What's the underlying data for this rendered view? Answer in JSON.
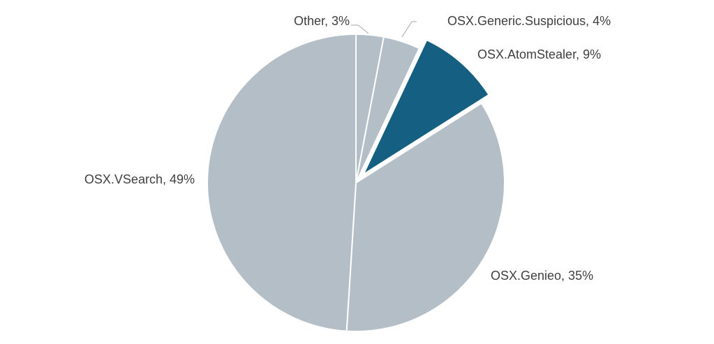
{
  "chart_data": {
    "type": "pie",
    "title": "",
    "start_angle_deg": 0,
    "direction": "clockwise",
    "slices": [
      {
        "label": "Other",
        "value": 3,
        "display": "Other, 3%",
        "color": "#b4bec7",
        "exploded": false
      },
      {
        "label": "OSX.Generic.Suspicious",
        "value": 4,
        "display": "OSX.Generic.Suspicious, 4%",
        "color": "#b4bec7",
        "exploded": false
      },
      {
        "label": "OSX.AtomStealer",
        "value": 9,
        "display": "OSX.AtomStealer, 9%",
        "color": "#156082",
        "exploded": true
      },
      {
        "label": "OSX.Genieo",
        "value": 35,
        "display": "OSX.Genieo, 35%",
        "color": "#b4bec7",
        "exploded": false
      },
      {
        "label": "OSX.VSearch",
        "value": 49,
        "display": "OSX.VSearch, 49%",
        "color": "#b4bec7",
        "exploded": false
      }
    ]
  }
}
